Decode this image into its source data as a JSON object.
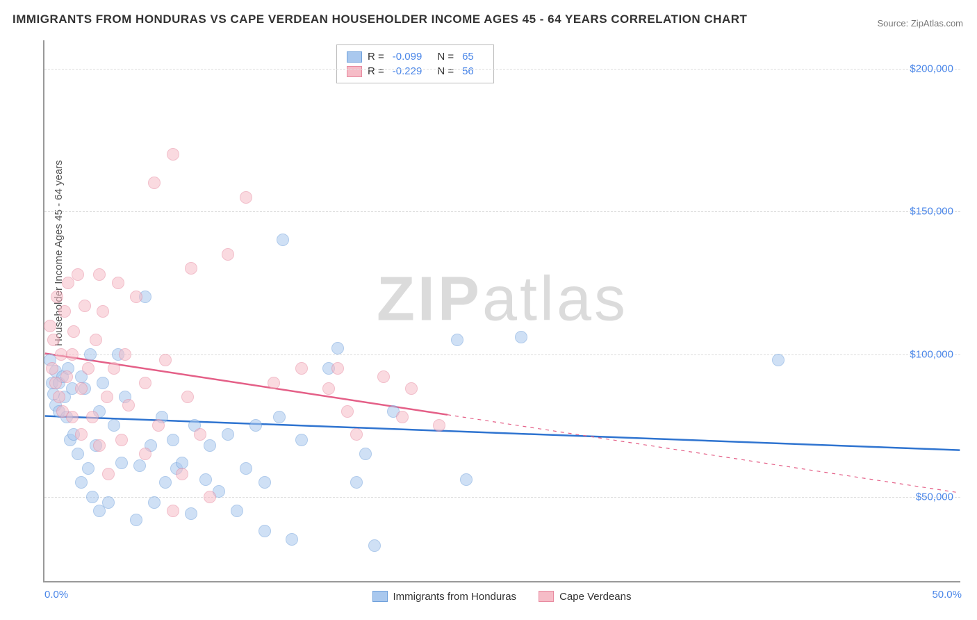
{
  "title": "IMMIGRANTS FROM HONDURAS VS CAPE VERDEAN HOUSEHOLDER INCOME AGES 45 - 64 YEARS CORRELATION CHART",
  "source": "Source: ZipAtlas.com",
  "y_axis_label": "Householder Income Ages 45 - 64 years",
  "watermark_left": "ZIP",
  "watermark_right": "atlas",
  "chart": {
    "type": "scatter",
    "xlim": [
      0,
      50
    ],
    "ylim": [
      20000,
      210000
    ],
    "x_ticks": [
      {
        "v": 0,
        "label": "0.0%"
      },
      {
        "v": 50,
        "label": "50.0%"
      }
    ],
    "y_gridlines": [
      50000,
      100000,
      150000,
      200000
    ],
    "y_tick_labels": [
      "$50,000",
      "$100,000",
      "$150,000",
      "$200,000"
    ],
    "background_color": "#ffffff",
    "grid_color": "#dddddd",
    "axis_color": "#999999",
    "tick_label_color": "#4a86e8",
    "marker_radius": 9,
    "marker_opacity": 0.55,
    "trend_line_width": 2.5,
    "series": [
      {
        "name": "Immigrants from Honduras",
        "color_fill": "#a9c8ee",
        "color_stroke": "#6fa0db",
        "trend_color": "#2f74d0",
        "R": "-0.099",
        "N": "65",
        "trend": {
          "x1": 0,
          "y1": 78000,
          "x2": 50,
          "y2": 66000,
          "solid_until_x": 50
        },
        "points": [
          [
            0.3,
            98000
          ],
          [
            0.4,
            90000
          ],
          [
            0.5,
            86000
          ],
          [
            0.6,
            82000
          ],
          [
            0.6,
            94000
          ],
          [
            0.8,
            90000
          ],
          [
            0.8,
            80000
          ],
          [
            1.0,
            92000
          ],
          [
            1.1,
            85000
          ],
          [
            1.2,
            78000
          ],
          [
            1.3,
            95000
          ],
          [
            1.4,
            70000
          ],
          [
            1.5,
            88000
          ],
          [
            1.6,
            72000
          ],
          [
            1.8,
            65000
          ],
          [
            2.0,
            92000
          ],
          [
            2.0,
            55000
          ],
          [
            2.2,
            88000
          ],
          [
            2.4,
            60000
          ],
          [
            2.5,
            100000
          ],
          [
            2.6,
            50000
          ],
          [
            2.8,
            68000
          ],
          [
            3.0,
            45000
          ],
          [
            3.0,
            80000
          ],
          [
            3.2,
            90000
          ],
          [
            3.5,
            48000
          ],
          [
            3.8,
            75000
          ],
          [
            4.0,
            100000
          ],
          [
            4.2,
            62000
          ],
          [
            4.4,
            85000
          ],
          [
            5.0,
            42000
          ],
          [
            5.2,
            61000
          ],
          [
            5.5,
            120000
          ],
          [
            5.8,
            68000
          ],
          [
            6.0,
            48000
          ],
          [
            6.4,
            78000
          ],
          [
            6.6,
            55000
          ],
          [
            7.0,
            70000
          ],
          [
            7.2,
            60000
          ],
          [
            7.5,
            62000
          ],
          [
            8.0,
            44000
          ],
          [
            8.2,
            75000
          ],
          [
            8.8,
            56000
          ],
          [
            9.0,
            68000
          ],
          [
            9.5,
            52000
          ],
          [
            10.0,
            72000
          ],
          [
            10.5,
            45000
          ],
          [
            11.0,
            60000
          ],
          [
            11.5,
            75000
          ],
          [
            12.0,
            55000
          ],
          [
            12.8,
            78000
          ],
          [
            13.0,
            140000
          ],
          [
            13.5,
            35000
          ],
          [
            14.0,
            70000
          ],
          [
            15.5,
            95000
          ],
          [
            16.0,
            102000
          ],
          [
            17.0,
            55000
          ],
          [
            17.5,
            65000
          ],
          [
            18.0,
            33000
          ],
          [
            19.0,
            80000
          ],
          [
            22.5,
            105000
          ],
          [
            23.0,
            56000
          ],
          [
            26.0,
            106000
          ],
          [
            40.0,
            98000
          ],
          [
            12.0,
            38000
          ]
        ]
      },
      {
        "name": "Cape Verdeans",
        "color_fill": "#f6bcc7",
        "color_stroke": "#e88aa0",
        "trend_color": "#e45f87",
        "R": "-0.229",
        "N": "56",
        "trend": {
          "x1": 0,
          "y1": 100000,
          "x2": 50,
          "y2": 51000,
          "solid_until_x": 22
        },
        "points": [
          [
            0.3,
            110000
          ],
          [
            0.4,
            95000
          ],
          [
            0.5,
            105000
          ],
          [
            0.6,
            90000
          ],
          [
            0.7,
            120000
          ],
          [
            0.8,
            85000
          ],
          [
            0.9,
            100000
          ],
          [
            1.0,
            80000
          ],
          [
            1.1,
            115000
          ],
          [
            1.2,
            92000
          ],
          [
            1.3,
            125000
          ],
          [
            1.5,
            100000
          ],
          [
            1.5,
            78000
          ],
          [
            1.6,
            108000
          ],
          [
            1.8,
            128000
          ],
          [
            2.0,
            88000
          ],
          [
            2.0,
            72000
          ],
          [
            2.2,
            117000
          ],
          [
            2.4,
            95000
          ],
          [
            2.6,
            78000
          ],
          [
            2.8,
            105000
          ],
          [
            3.0,
            68000
          ],
          [
            3.2,
            115000
          ],
          [
            3.4,
            85000
          ],
          [
            3.5,
            58000
          ],
          [
            3.8,
            95000
          ],
          [
            4.0,
            125000
          ],
          [
            4.2,
            70000
          ],
          [
            4.4,
            100000
          ],
          [
            4.6,
            82000
          ],
          [
            5.0,
            120000
          ],
          [
            5.5,
            65000
          ],
          [
            5.5,
            90000
          ],
          [
            6.0,
            160000
          ],
          [
            6.2,
            75000
          ],
          [
            6.6,
            98000
          ],
          [
            7.0,
            45000
          ],
          [
            7.5,
            58000
          ],
          [
            7.8,
            85000
          ],
          [
            8.0,
            130000
          ],
          [
            8.5,
            72000
          ],
          [
            9.0,
            50000
          ],
          [
            10.0,
            135000
          ],
          [
            11.0,
            155000
          ],
          [
            12.5,
            90000
          ],
          [
            14.0,
            95000
          ],
          [
            15.5,
            88000
          ],
          [
            16.0,
            95000
          ],
          [
            16.5,
            80000
          ],
          [
            17.0,
            72000
          ],
          [
            18.5,
            92000
          ],
          [
            19.5,
            78000
          ],
          [
            20.0,
            88000
          ],
          [
            21.5,
            75000
          ],
          [
            7.0,
            170000
          ],
          [
            3.0,
            128000
          ]
        ]
      }
    ]
  },
  "legend_bottom": {
    "items": [
      "Immigrants from Honduras",
      "Cape Verdeans"
    ]
  }
}
